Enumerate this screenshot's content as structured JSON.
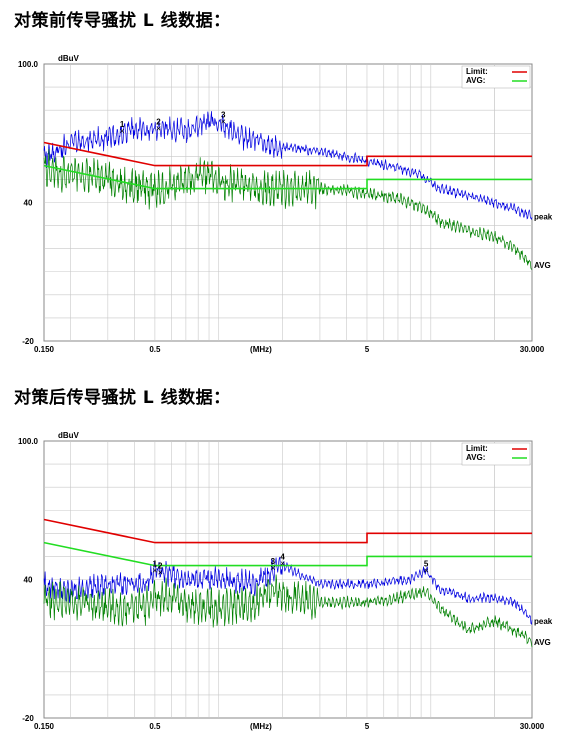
{
  "headings": {
    "before": "对策前传导骚扰 L 线数据：",
    "after": "对策后传导骚扰 L 线数据："
  },
  "colors": {
    "limit": "#e00000",
    "avg_limit": "#22dd22",
    "peak": "#0000e0",
    "avg": "#008000",
    "grid": "#c8c8c8"
  },
  "chart_data": [
    {
      "type": "line",
      "ylabel": "dBuV",
      "ylim": [
        -20,
        100
      ],
      "xlim": [
        0.15,
        30
      ],
      "x_scale": "log",
      "y_tick_labels": [
        "100.0",
        "40",
        "-20"
      ],
      "x_tick_labels": [
        "0.150",
        "0.5",
        "(MHz)",
        "5",
        "30.000"
      ],
      "legend": [
        {
          "name": "Limit:",
          "color": "#e00000"
        },
        {
          "name": "AVG:",
          "color": "#22dd22"
        }
      ],
      "series": [
        {
          "name": "peak",
          "color": "#0000e0",
          "x": [
            0.15,
            0.2,
            0.3,
            0.4,
            0.5,
            0.7,
            0.9,
            1.0,
            1.3,
            2.0,
            3.0,
            5.0,
            7.0,
            9.0,
            11.0,
            15.0,
            20.0,
            25.0,
            30.0
          ],
          "y": [
            60,
            66,
            68,
            72,
            72,
            71,
            75,
            75,
            68,
            64,
            62,
            58,
            55,
            52,
            46,
            43,
            40,
            37,
            34
          ]
        },
        {
          "name": "AVG",
          "color": "#008000",
          "x": [
            0.15,
            0.2,
            0.3,
            0.4,
            0.5,
            0.7,
            0.9,
            1.0,
            1.3,
            2.0,
            3.0,
            5.0,
            7.0,
            9.0,
            11.0,
            15.0,
            20.0,
            25.0,
            30.0
          ],
          "y": [
            55,
            52,
            50,
            47,
            45,
            50,
            52,
            50,
            47,
            46,
            46,
            44,
            42,
            38,
            32,
            28,
            25,
            20,
            13
          ]
        },
        {
          "name": "Limit",
          "color": "#e00000",
          "x": [
            0.15,
            0.5,
            0.5,
            5.0,
            5.0,
            30.0
          ],
          "y": [
            66,
            56,
            56,
            56,
            60,
            60
          ]
        },
        {
          "name": "AVG limit",
          "color": "#22dd22",
          "x": [
            0.15,
            0.5,
            0.5,
            5.0,
            5.0,
            30.0
          ],
          "y": [
            56,
            46,
            46,
            46,
            50,
            50
          ]
        }
      ],
      "markers": [
        {
          "label": "1",
          "x": 0.35,
          "y": 71
        },
        {
          "label": "2",
          "x": 0.52,
          "y": 72
        },
        {
          "label": "3",
          "x": 1.05,
          "y": 75
        }
      ],
      "trace_labels": {
        "peak": "peak",
        "avg": "AVG"
      }
    },
    {
      "type": "line",
      "ylabel": "dBuV",
      "ylim": [
        -20,
        100
      ],
      "xlim": [
        0.15,
        30
      ],
      "x_scale": "log",
      "y_tick_labels": [
        "100.0",
        "40",
        "-20"
      ],
      "x_tick_labels": [
        "0.150",
        "0.5",
        "(MHz)",
        "5",
        "30.000"
      ],
      "legend": [
        {
          "name": "Limit:",
          "color": "#e00000"
        },
        {
          "name": "AVG:",
          "color": "#22dd22"
        }
      ],
      "series": [
        {
          "name": "peak",
          "color": "#0000e0",
          "x": [
            0.15,
            0.2,
            0.3,
            0.45,
            0.5,
            0.7,
            1.0,
            1.5,
            1.8,
            2.0,
            3.0,
            5.0,
            8.0,
            9.5,
            11.0,
            15.0,
            20.0,
            25.0,
            30.0
          ],
          "y": [
            38,
            35,
            38,
            38,
            44,
            40,
            40,
            38,
            44,
            46,
            38,
            38,
            40,
            44,
            36,
            32,
            32,
            30,
            22
          ]
        },
        {
          "name": "AVG",
          "color": "#008000",
          "x": [
            0.15,
            0.2,
            0.3,
            0.45,
            0.5,
            0.7,
            1.0,
            1.5,
            1.8,
            2.0,
            3.0,
            5.0,
            8.0,
            9.5,
            11.0,
            15.0,
            20.0,
            25.0,
            30.0
          ],
          "y": [
            32,
            30,
            28,
            28,
            33,
            30,
            27,
            30,
            35,
            33,
            30,
            30,
            33,
            35,
            28,
            18,
            22,
            18,
            13
          ]
        },
        {
          "name": "Limit",
          "color": "#e00000",
          "x": [
            0.15,
            0.5,
            0.5,
            5.0,
            5.0,
            30.0
          ],
          "y": [
            66,
            56,
            56,
            56,
            60,
            60
          ]
        },
        {
          "name": "AVG limit",
          "color": "#22dd22",
          "x": [
            0.15,
            0.5,
            0.5,
            5.0,
            5.0,
            30.0
          ],
          "y": [
            56,
            46,
            46,
            46,
            50,
            50
          ]
        }
      ],
      "markers": [
        {
          "label": "1",
          "x": 0.5,
          "y": 44
        },
        {
          "label": "2",
          "x": 0.53,
          "y": 43
        },
        {
          "label": "3",
          "x": 1.8,
          "y": 45
        },
        {
          "label": "4",
          "x": 2.0,
          "y": 47
        },
        {
          "label": "5",
          "x": 9.5,
          "y": 44
        }
      ],
      "trace_labels": {
        "peak": "peak",
        "avg": "AVG"
      }
    }
  ]
}
